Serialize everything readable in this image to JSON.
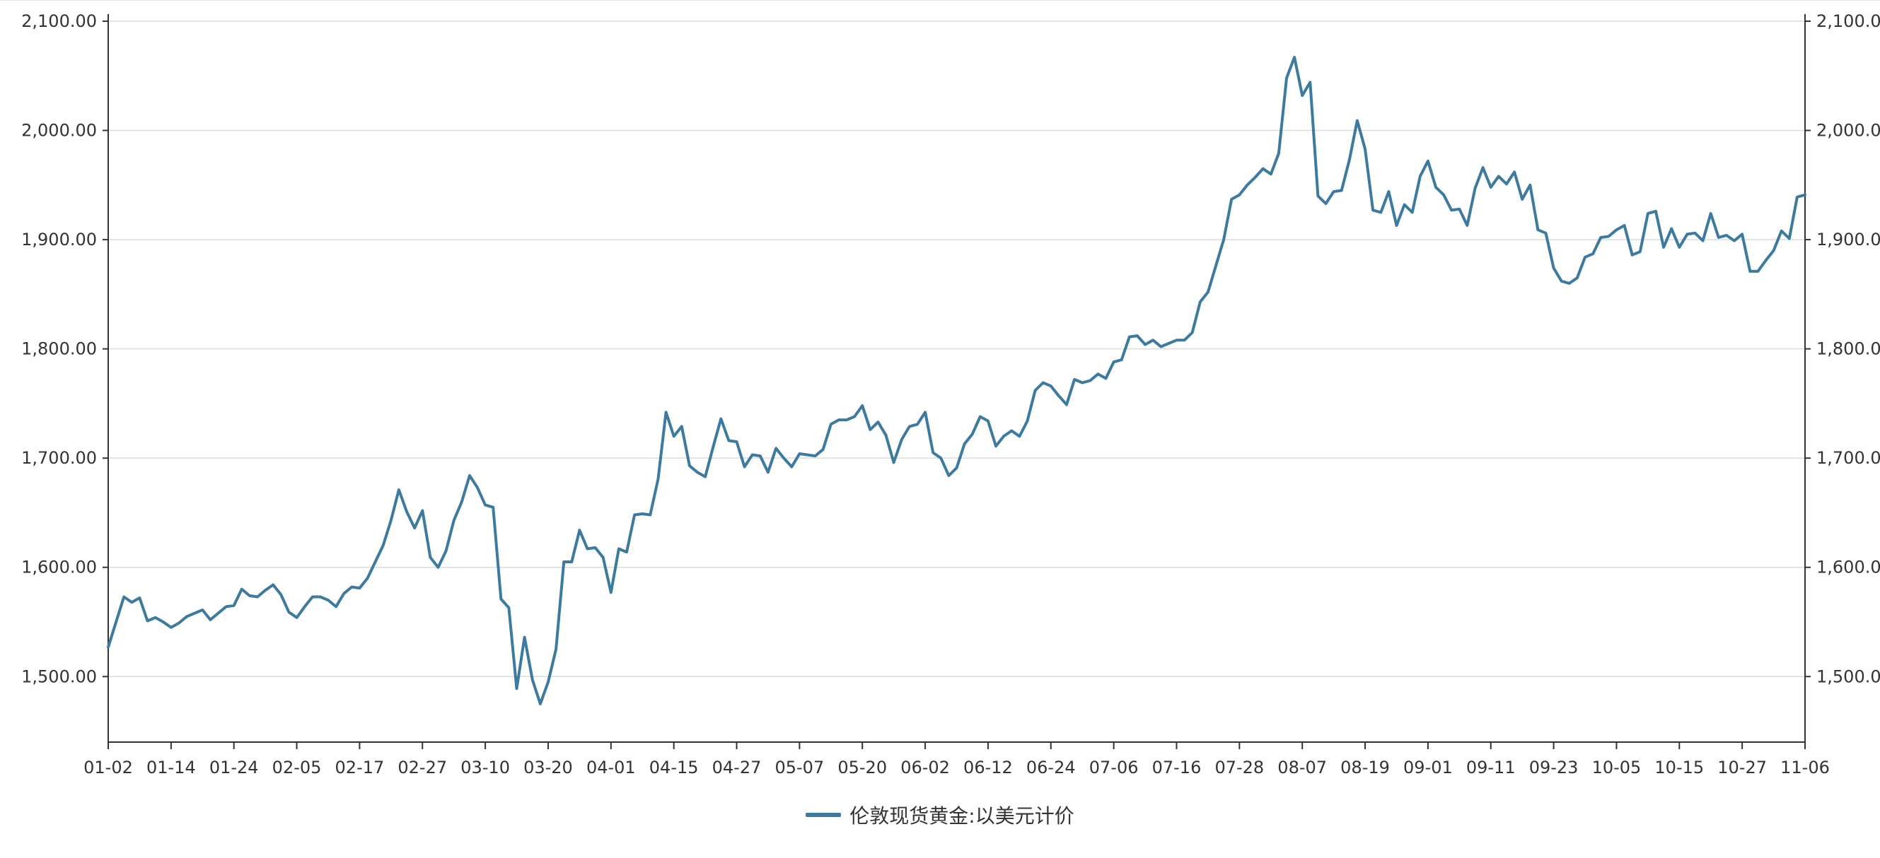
{
  "colors": {
    "series": "#3c7aa0",
    "grid": "#dcdcdc",
    "axis": "#333333",
    "text": "#333333"
  },
  "chart_data": {
    "type": "line",
    "title": "",
    "xlabel": "",
    "ylabel": "",
    "ylim": [
      1440,
      2100
    ],
    "y_ticks": [
      1500,
      1600,
      1700,
      1800,
      1900,
      2000,
      2100
    ],
    "y_tick_labels": [
      "1,500.00",
      "1,600.00",
      "1,700.00",
      "1,800.00",
      "1,900.00",
      "2,000.00",
      "2,100.00"
    ],
    "x_tick_labels": [
      "01-02",
      "01-14",
      "01-24",
      "02-05",
      "02-17",
      "02-27",
      "03-10",
      "03-20",
      "04-01",
      "04-15",
      "04-27",
      "05-07",
      "05-20",
      "06-02",
      "06-12",
      "06-24",
      "07-06",
      "07-16",
      "07-28",
      "08-07",
      "08-19",
      "09-01",
      "09-11",
      "09-23",
      "10-05",
      "10-15",
      "10-27",
      "11-06"
    ],
    "grid": true,
    "legend_position": "bottom-center",
    "dual_y_axis": true,
    "series": [
      {
        "name": "伦敦现货黄金:以美元计价",
        "values": [
          1527,
          1550,
          1573,
          1568,
          1572,
          1551,
          1554,
          1550,
          1545,
          1549,
          1555,
          1558,
          1561,
          1552,
          1558,
          1564,
          1565,
          1580,
          1574,
          1573,
          1579,
          1584,
          1575,
          1559,
          1554,
          1564,
          1573,
          1573,
          1570,
          1564,
          1576,
          1582,
          1581,
          1590,
          1605,
          1620,
          1643,
          1671,
          1651,
          1636,
          1652,
          1609,
          1600,
          1615,
          1643,
          1660,
          1684,
          1673,
          1657,
          1655,
          1571,
          1563,
          1489,
          1536,
          1497,
          1475,
          1495,
          1525,
          1605,
          1605,
          1634,
          1617,
          1618,
          1609,
          1577,
          1617,
          1614,
          1648,
          1649,
          1648,
          1681,
          1742,
          1720,
          1729,
          1693,
          1687,
          1683,
          1710,
          1736,
          1716,
          1715,
          1692,
          1703,
          1702,
          1687,
          1709,
          1700,
          1692,
          1704,
          1703,
          1702,
          1708,
          1731,
          1735,
          1735,
          1738,
          1748,
          1726,
          1733,
          1721,
          1696,
          1717,
          1729,
          1731,
          1742,
          1705,
          1700,
          1684,
          1691,
          1713,
          1722,
          1738,
          1734,
          1711,
          1720,
          1725,
          1720,
          1734,
          1762,
          1769,
          1766,
          1757,
          1749,
          1772,
          1769,
          1771,
          1777,
          1773,
          1788,
          1790,
          1811,
          1812,
          1804,
          1808,
          1802,
          1805,
          1808,
          1808,
          1815,
          1843,
          1852,
          1876,
          1900,
          1937,
          1941,
          1950,
          1957,
          1965,
          1960,
          1979,
          2048,
          2067,
          2032,
          2044,
          1940,
          1933,
          1944,
          1945,
          1973,
          2009,
          1983,
          1927,
          1925,
          1944,
          1913,
          1932,
          1925,
          1958,
          1972,
          1948,
          1941,
          1927,
          1928,
          1913,
          1947,
          1966,
          1948,
          1958,
          1951,
          1962,
          1937,
          1950,
          1909,
          1906,
          1874,
          1862,
          1860,
          1865,
          1884,
          1887,
          1902,
          1903,
          1909,
          1913,
          1886,
          1889,
          1924,
          1926,
          1893,
          1910,
          1893,
          1905,
          1906,
          1899,
          1924,
          1902,
          1904,
          1899,
          1905,
          1871,
          1871,
          1881,
          1890,
          1908,
          1901,
          1939,
          1941
        ]
      }
    ]
  }
}
